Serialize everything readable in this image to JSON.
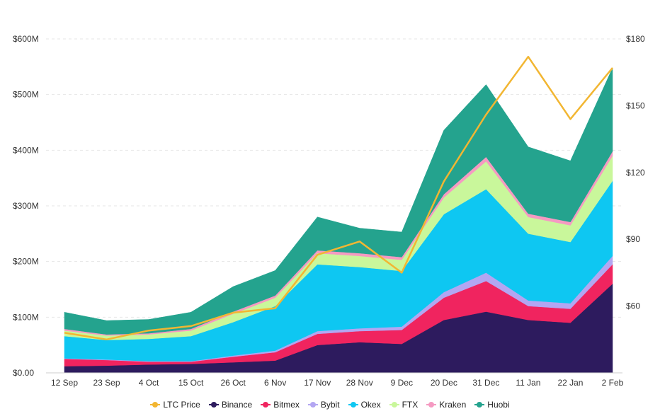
{
  "chart_data": {
    "type": "area",
    "stacked": true,
    "categories": [
      "12 Sep",
      "23 Sep",
      "4 Oct",
      "15 Oct",
      "26 Oct",
      "6 Nov",
      "17 Nov",
      "28 Nov",
      "9 Dec",
      "20 Dec",
      "31 Dec",
      "11 Jan",
      "22 Jan",
      "2 Feb"
    ],
    "y_left": {
      "ticks": [
        "$0.00",
        "$100M",
        "$200M",
        "$300M",
        "$400M",
        "$500M",
        "$600M"
      ],
      "range": [
        0,
        600
      ]
    },
    "y_right": {
      "ticks": [
        "$60",
        "$90",
        "$120",
        "$150",
        "$180"
      ],
      "range": [
        30,
        180
      ]
    },
    "series": [
      {
        "name": "Binance",
        "type": "area",
        "color": "#2d1b5e",
        "values": [
          12,
          13,
          15,
          16,
          19,
          22,
          50,
          55,
          52,
          95,
          110,
          95,
          90,
          160
        ]
      },
      {
        "name": "Bitmex",
        "type": "area",
        "color": "#f0245f",
        "values": [
          13,
          10,
          5,
          4,
          10,
          15,
          20,
          20,
          25,
          40,
          55,
          25,
          25,
          35
        ]
      },
      {
        "name": "Bybit",
        "type": "area",
        "color": "#b3a6f2",
        "values": [
          1,
          1,
          1,
          1,
          2,
          3,
          5,
          5,
          6,
          10,
          15,
          10,
          10,
          15
        ]
      },
      {
        "name": "Okex",
        "type": "area",
        "color": "#0ec7f2",
        "values": [
          40,
          35,
          40,
          45,
          60,
          80,
          120,
          110,
          100,
          140,
          150,
          120,
          110,
          135
        ]
      },
      {
        "name": "FTX",
        "type": "area",
        "color": "#c9f79b",
        "values": [
          10,
          8,
          8,
          10,
          15,
          15,
          20,
          20,
          20,
          30,
          50,
          30,
          30,
          45
        ]
      },
      {
        "name": "Kraken",
        "type": "area",
        "color": "#f59ac2",
        "values": [
          3,
          2,
          2,
          3,
          4,
          4,
          5,
          5,
          5,
          6,
          8,
          6,
          6,
          8
        ]
      },
      {
        "name": "Huobi",
        "type": "area",
        "color": "#24a38e",
        "values": [
          30,
          25,
          25,
          30,
          45,
          45,
          60,
          45,
          45,
          115,
          130,
          120,
          110,
          150
        ]
      },
      {
        "name": "LTC Price",
        "type": "line",
        "axis": "right",
        "color": "#f2b632",
        "values": [
          48,
          45,
          49,
          51,
          57,
          59,
          83,
          89,
          75,
          116,
          146,
          172,
          144,
          167
        ]
      }
    ],
    "grid": true,
    "legend": "bottom"
  }
}
